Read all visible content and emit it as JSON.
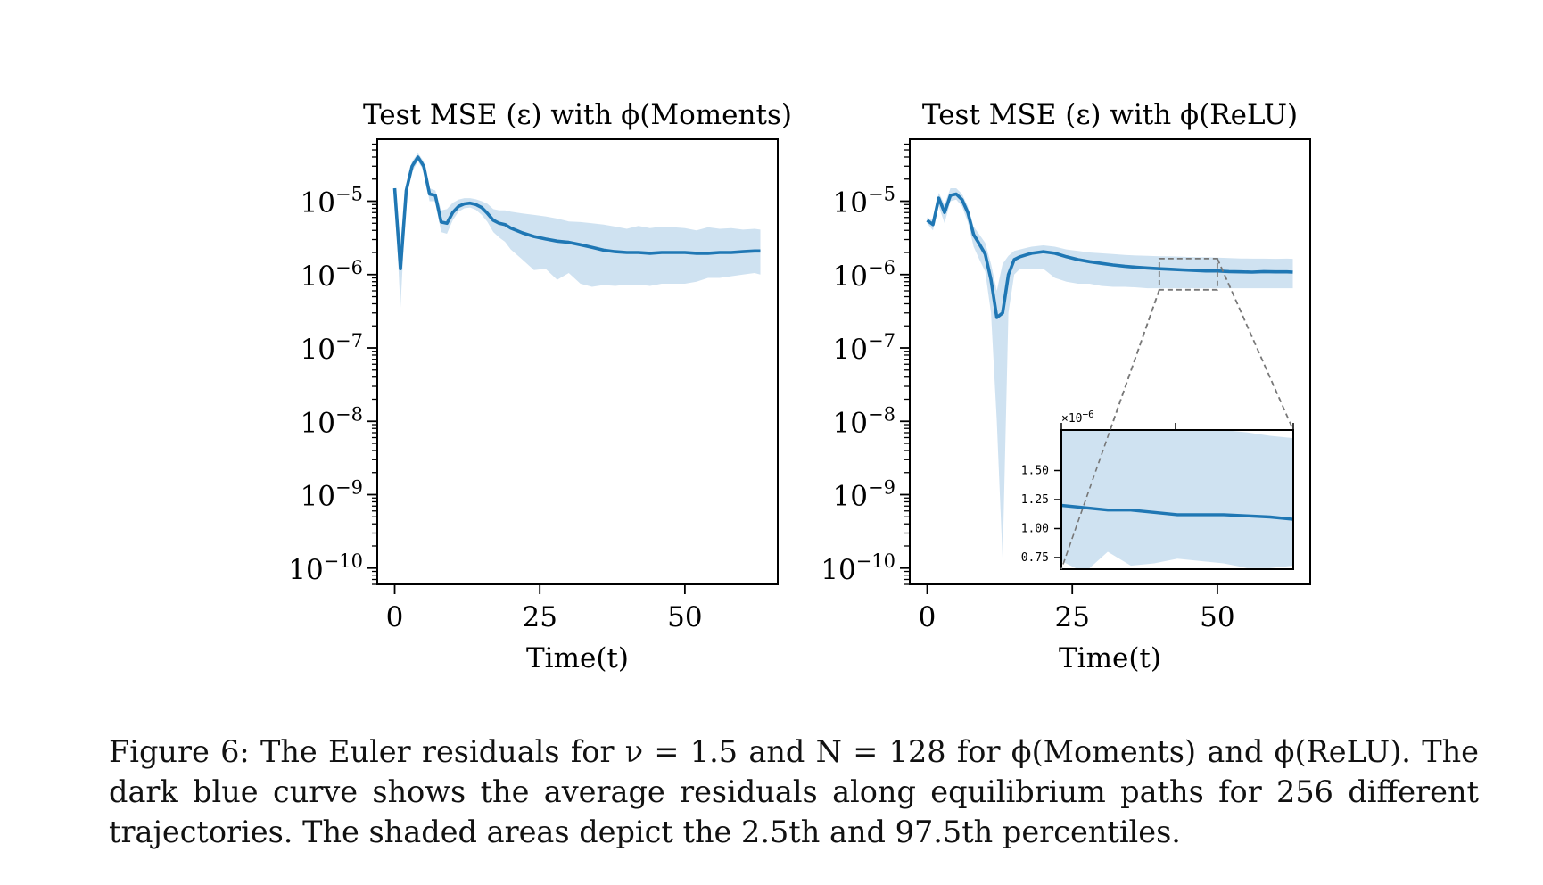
{
  "chart_data": [
    {
      "type": "line",
      "title": "Test MSE (ε) with ϕ(Moments)",
      "xlabel": "Time(t)",
      "ylabel": "",
      "yscale": "log",
      "xlim": [
        -3,
        66
      ],
      "ylim": [
        6e-11,
        7e-05
      ],
      "xticks": [
        "0",
        "25",
        "50"
      ],
      "yticks": [
        {
          "base": "10",
          "exp": "−5",
          "value": 1e-05
        },
        {
          "base": "10",
          "exp": "−6",
          "value": 1e-06
        },
        {
          "base": "10",
          "exp": "−7",
          "value": 1e-07
        },
        {
          "base": "10",
          "exp": "−8",
          "value": 1e-08
        },
        {
          "base": "10",
          "exp": "−9",
          "value": 1e-09
        },
        {
          "base": "10",
          "exp": "−10",
          "value": 1e-10
        }
      ],
      "series": [
        {
          "style": "mean line with 2.5–97.5 percentile band",
          "color": "#1f77b4",
          "band_color": "#cfe2f1",
          "x": [
            0,
            1,
            2,
            3,
            4,
            5,
            6,
            7,
            8,
            9,
            10,
            11,
            12,
            13,
            14,
            15,
            16,
            17,
            18,
            19,
            20,
            22,
            24,
            26,
            28,
            30,
            32,
            34,
            36,
            38,
            40,
            42,
            44,
            46,
            48,
            50,
            52,
            54,
            56,
            58,
            60,
            62,
            63
          ],
          "mean": [
            1.5e-05,
            1.2e-06,
            1.4e-05,
            3e-05,
            4e-05,
            3e-05,
            1.25e-05,
            1.2e-05,
            5.2e-06,
            5e-06,
            7e-06,
            8.5e-06,
            9.2e-06,
            9.4e-06,
            9e-06,
            8.2e-06,
            6.8e-06,
            5.5e-06,
            5e-06,
            4.8e-06,
            4.3e-06,
            3.7e-06,
            3.3e-06,
            3.05e-06,
            2.85e-06,
            2.75e-06,
            2.55e-06,
            2.35e-06,
            2.15e-06,
            2.05e-06,
            2e-06,
            2e-06,
            1.95e-06,
            2e-06,
            2e-06,
            2e-06,
            1.95e-06,
            1.95e-06,
            2e-06,
            2e-06,
            2.05e-06,
            2.1e-06,
            2.1e-06
          ],
          "lower": [
            1.3e-05,
            3.5e-07,
            1.1e-05,
            2.5e-05,
            3.5e-05,
            2.6e-05,
            1e-05,
            1e-05,
            3.8e-06,
            3.6e-06,
            5.5e-06,
            7.2e-06,
            8e-06,
            8.2e-06,
            7.6e-06,
            6.5e-06,
            5.2e-06,
            3.8e-06,
            3.2e-06,
            2.8e-06,
            2.2e-06,
            1.6e-06,
            1.15e-06,
            1.2e-06,
            8.5e-07,
            1.05e-06,
            7.5e-07,
            6.8e-07,
            7.2e-07,
            7e-07,
            7.3e-07,
            7.3e-07,
            7e-07,
            7.5e-07,
            7.5e-07,
            7.5e-07,
            8e-07,
            9e-07,
            9e-07,
            9.5e-07,
            1e-06,
            1.05e-06,
            1e-06
          ],
          "upper": [
            1.6e-05,
            1.6e-06,
            1.6e-05,
            3.5e-05,
            4.5e-05,
            3.5e-05,
            1.5e-05,
            1.4e-05,
            7.5e-06,
            7.8e-06,
            9.5e-06,
            1.05e-05,
            1.1e-05,
            1.1e-05,
            1.06e-05,
            1e-05,
            9.2e-06,
            7.8e-06,
            7.5e-06,
            7.5e-06,
            7.2e-06,
            6.8e-06,
            6.5e-06,
            6.2e-06,
            5.8e-06,
            5.3e-06,
            5.2e-06,
            5e-06,
            4.8e-06,
            4.5e-06,
            4.2e-06,
            4.6e-06,
            4.3e-06,
            4.5e-06,
            4.4e-06,
            4.3e-06,
            4e-06,
            4.4e-06,
            4.2e-06,
            4.3e-06,
            4.1e-06,
            4.2e-06,
            4.1e-06
          ]
        }
      ]
    },
    {
      "type": "line",
      "title": "Test MSE (ε) with ϕ(ReLU)",
      "xlabel": "Time(t)",
      "ylabel": "",
      "yscale": "log",
      "xlim": [
        -3,
        66
      ],
      "ylim": [
        6e-11,
        7e-05
      ],
      "xticks": [
        "0",
        "25",
        "50"
      ],
      "yticks": [
        {
          "base": "10",
          "exp": "−5",
          "value": 1e-05
        },
        {
          "base": "10",
          "exp": "−6",
          "value": 1e-06
        },
        {
          "base": "10",
          "exp": "−7",
          "value": 1e-07
        },
        {
          "base": "10",
          "exp": "−8",
          "value": 1e-08
        },
        {
          "base": "10",
          "exp": "−9",
          "value": 1e-09
        },
        {
          "base": "10",
          "exp": "−10",
          "value": 1e-10
        }
      ],
      "series": [
        {
          "style": "mean line with 2.5–97.5 percentile band",
          "color": "#1f77b4",
          "band_color": "#cfe2f1",
          "x": [
            0,
            1,
            2,
            3,
            4,
            5,
            6,
            7,
            8,
            9,
            10,
            11,
            12,
            13,
            14,
            15,
            16,
            17,
            18,
            20,
            22,
            24,
            26,
            28,
            30,
            32,
            34,
            36,
            38,
            40,
            42,
            44,
            46,
            48,
            50,
            52,
            54,
            56,
            58,
            60,
            62,
            63
          ],
          "mean": [
            5.5e-06,
            4.8e-06,
            1.1e-05,
            7e-06,
            1.2e-05,
            1.25e-05,
            1.05e-05,
            7e-06,
            3.5e-06,
            2.6e-06,
            1.9e-06,
            8.5e-07,
            2.6e-07,
            3e-07,
            1e-06,
            1.6e-06,
            1.75e-06,
            1.85e-06,
            1.95e-06,
            2.05e-06,
            1.95e-06,
            1.75e-06,
            1.6e-06,
            1.5e-06,
            1.42e-06,
            1.35e-06,
            1.3e-06,
            1.26e-06,
            1.23e-06,
            1.2e-06,
            1.18e-06,
            1.16e-06,
            1.14e-06,
            1.12e-06,
            1.12e-06,
            1.1e-06,
            1.09e-06,
            1.08e-06,
            1.1e-06,
            1.09e-06,
            1.09e-06,
            1.08e-06
          ],
          "lower": [
            5e-06,
            4e-06,
            8.5e-06,
            5e-06,
            1e-05,
            1.05e-05,
            8.5e-06,
            5.2e-06,
            2.4e-06,
            1.6e-06,
            1.1e-06,
            3e-07,
            1e-08,
            1.3e-10,
            3e-07,
            1e-06,
            1.2e-06,
            1.2e-06,
            1.2e-06,
            1.2e-06,
            9e-07,
            8e-07,
            7.5e-07,
            7.5e-07,
            7e-07,
            6.8e-07,
            6.8e-07,
            6.7e-07,
            6.5e-07,
            6.5e-07,
            6.5e-07,
            6.5e-07,
            6.5e-07,
            6.5e-07,
            6.5e-07,
            6.5e-07,
            6.5e-07,
            6.5e-07,
            6.5e-07,
            6.5e-07,
            6.5e-07,
            6.5e-07
          ],
          "upper": [
            6e-06,
            5.5e-06,
            1.3e-05,
            9e-06,
            1.5e-05,
            1.5e-05,
            1.25e-05,
            8.5e-06,
            4.5e-06,
            3.5e-06,
            2.7e-06,
            1.4e-06,
            6e-07,
            1.4e-06,
            1.8e-06,
            2.1e-06,
            2.2e-06,
            2.3e-06,
            2.4e-06,
            2.5e-06,
            2.4e-06,
            2.2e-06,
            2.1e-06,
            2e-06,
            1.95e-06,
            1.9e-06,
            1.85e-06,
            1.82e-06,
            1.8e-06,
            1.78e-06,
            1.77e-06,
            1.75e-06,
            1.73e-06,
            1.72e-06,
            1.7e-06,
            1.68e-06,
            1.66e-06,
            1.65e-06,
            1.65e-06,
            1.64e-06,
            1.65e-06,
            1.64e-06
          ]
        }
      ],
      "zoom_box": {
        "xlim": [
          40,
          50
        ],
        "ylim": [
          6.2e-07,
          1.65e-06
        ]
      },
      "inset": {
        "offset_label": "×10",
        "offset_exp": "−6",
        "xlim": [
          40,
          50
        ],
        "ylim": [
          0.65,
          1.85
        ],
        "yticks": [
          "0.75",
          "1.00",
          "1.25",
          "1.50"
        ],
        "ytick_values": [
          0.75,
          1.0,
          1.25,
          1.5
        ],
        "x": [
          40,
          41,
          42,
          43,
          44,
          45,
          46,
          47,
          48,
          49,
          50
        ],
        "mean": [
          1.2,
          1.18,
          1.16,
          1.16,
          1.14,
          1.12,
          1.12,
          1.12,
          1.11,
          1.1,
          1.08
        ],
        "lower": [
          0.72,
          0.62,
          0.8,
          0.68,
          0.7,
          0.74,
          0.72,
          0.7,
          0.66,
          0.66,
          0.68
        ],
        "upper": [
          1.88,
          1.95,
          1.9,
          1.9,
          1.88,
          1.86,
          1.85,
          1.85,
          1.83,
          1.8,
          1.78
        ]
      }
    }
  ],
  "caption": "Figure 6: The Euler residuals for ν = 1.5 and N = 128 for ϕ(Moments) and ϕ(ReLU). The dark blue curve shows the average residuals along equilibrium paths for 256 different trajectories. The shaded areas depict the 2.5th and 97.5th percentiles."
}
